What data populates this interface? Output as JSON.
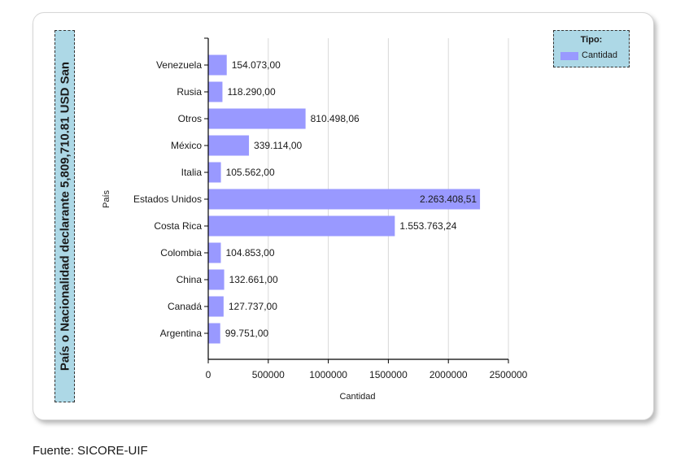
{
  "source_note": "Fuente: SICORE-UIF",
  "legend": {
    "title": "Tipo:",
    "label": "Cantidad"
  },
  "colors": {
    "bar": "#9999ff",
    "panel": "#add8e6",
    "grid": "#d9d9d9"
  },
  "chart_data": {
    "type": "bar",
    "orientation": "horizontal",
    "title": "País o Nacionalidad declarante 5,809,710.81 USD San",
    "xlabel": "Cantidad",
    "ylabel": "País",
    "xlim": [
      0,
      2500000
    ],
    "xticks": [
      0,
      500000,
      1000000,
      1500000,
      2000000,
      2500000
    ],
    "grid": true,
    "legend_position": "top-right",
    "categories": [
      "Venezuela",
      "Rusia",
      "Otros",
      "México",
      "Italia",
      "Estados Unidos",
      "Costa Rica",
      "Colombia",
      "China",
      "Canadá",
      "Argentina"
    ],
    "series": [
      {
        "name": "Cantidad",
        "values": [
          154073.0,
          118290.0,
          810498.06,
          339114.0,
          105562.0,
          2263408.51,
          1553763.24,
          104853.0,
          132661.0,
          127737.0,
          99751.0
        ],
        "labels": [
          "154.073,00",
          "118.290,00",
          "810.498,06",
          "339.114,00",
          "105.562,00",
          "2.263.408,51",
          "1.553.763,24",
          "104.853,00",
          "132.661,00",
          "127.737,00",
          "99.751,00"
        ]
      }
    ]
  }
}
